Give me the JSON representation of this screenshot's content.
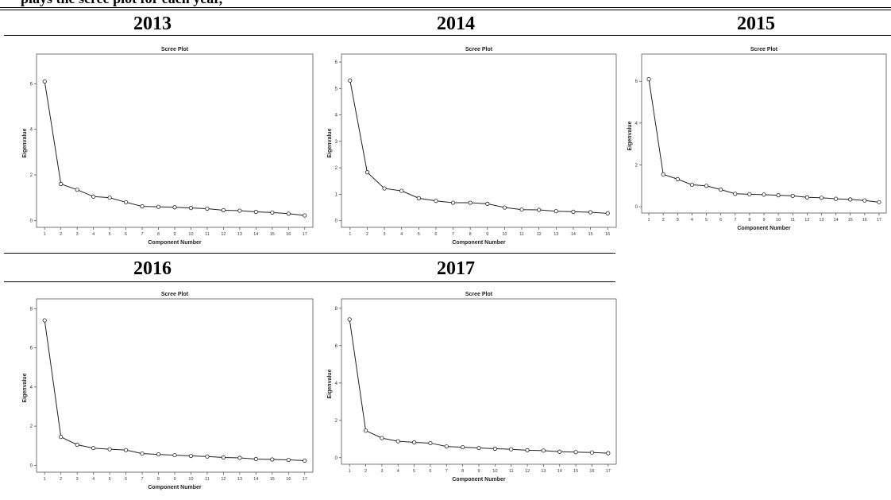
{
  "header_fragment": "plays the scree plot for each year,",
  "chart_data": [
    {
      "type": "line",
      "year": "2013",
      "title": "Scree Plot",
      "xlabel": "Component Number",
      "ylabel": "Eigenvalue",
      "x": [
        1,
        2,
        3,
        4,
        5,
        6,
        7,
        8,
        9,
        10,
        11,
        12,
        13,
        14,
        15,
        16,
        17
      ],
      "values": [
        6.1,
        1.6,
        1.35,
        1.05,
        1.0,
        0.8,
        0.62,
        0.6,
        0.58,
        0.55,
        0.52,
        0.45,
        0.43,
        0.38,
        0.35,
        0.3,
        0.22
      ],
      "xlim": [
        0.5,
        17.5
      ],
      "ylim": [
        -0.3,
        7.3
      ],
      "yticks": [
        0,
        2,
        4,
        6
      ],
      "grid": false,
      "legend": "none"
    },
    {
      "type": "line",
      "year": "2014",
      "title": "Scree Plot",
      "xlabel": "Component Number",
      "ylabel": "Eigenvalue",
      "x": [
        1,
        2,
        3,
        4,
        5,
        6,
        7,
        8,
        9,
        10,
        11,
        12,
        13,
        14,
        15,
        16
      ],
      "values": [
        5.3,
        1.83,
        1.22,
        1.13,
        0.85,
        0.75,
        0.68,
        0.68,
        0.64,
        0.5,
        0.42,
        0.41,
        0.36,
        0.34,
        0.32,
        0.28
      ],
      "xlim": [
        0.5,
        16.5
      ],
      "ylim": [
        -0.25,
        6.3
      ],
      "yticks": [
        0,
        1,
        2,
        3,
        4,
        5,
        6
      ],
      "grid": false,
      "legend": "none"
    },
    {
      "type": "line",
      "year": "2015",
      "title": "Scree Plot",
      "xlabel": "Component Number",
      "ylabel": "Eigenvalue",
      "x": [
        1,
        2,
        3,
        4,
        5,
        6,
        7,
        8,
        9,
        10,
        11,
        12,
        13,
        14,
        15,
        16,
        17
      ],
      "values": [
        6.1,
        1.55,
        1.32,
        1.05,
        1.0,
        0.82,
        0.62,
        0.6,
        0.58,
        0.55,
        0.52,
        0.45,
        0.43,
        0.38,
        0.35,
        0.3,
        0.22
      ],
      "xlim": [
        0.5,
        17.5
      ],
      "ylim": [
        -0.3,
        7.3
      ],
      "yticks": [
        0,
        2,
        4,
        6
      ],
      "grid": false,
      "legend": "none"
    },
    {
      "type": "line",
      "year": "2016",
      "title": "Scree Plot",
      "xlabel": "Component Number",
      "ylabel": "Eigenvalue",
      "x": [
        1,
        2,
        3,
        4,
        5,
        6,
        7,
        8,
        9,
        10,
        11,
        12,
        13,
        14,
        15,
        16,
        17
      ],
      "values": [
        7.4,
        1.45,
        1.05,
        0.88,
        0.82,
        0.78,
        0.6,
        0.56,
        0.52,
        0.48,
        0.45,
        0.4,
        0.38,
        0.32,
        0.3,
        0.28,
        0.24
      ],
      "xlim": [
        0.5,
        17.5
      ],
      "ylim": [
        -0.35,
        8.5
      ],
      "yticks": [
        0,
        2,
        4,
        6,
        8
      ],
      "grid": false,
      "legend": "none"
    },
    {
      "type": "line",
      "year": "2017",
      "title": "Scree Plot",
      "xlabel": "Component Number",
      "ylabel": "Eigenvalue",
      "x": [
        1,
        2,
        3,
        4,
        5,
        6,
        7,
        8,
        9,
        10,
        11,
        12,
        13,
        14,
        15,
        16,
        17
      ],
      "values": [
        7.4,
        1.45,
        1.05,
        0.88,
        0.82,
        0.78,
        0.6,
        0.56,
        0.52,
        0.48,
        0.45,
        0.4,
        0.38,
        0.32,
        0.3,
        0.28,
        0.24
      ],
      "xlim": [
        0.5,
        17.5
      ],
      "ylim": [
        -0.35,
        8.5
      ],
      "yticks": [
        0,
        2,
        4,
        6,
        8
      ],
      "grid": false,
      "legend": "none"
    }
  ]
}
